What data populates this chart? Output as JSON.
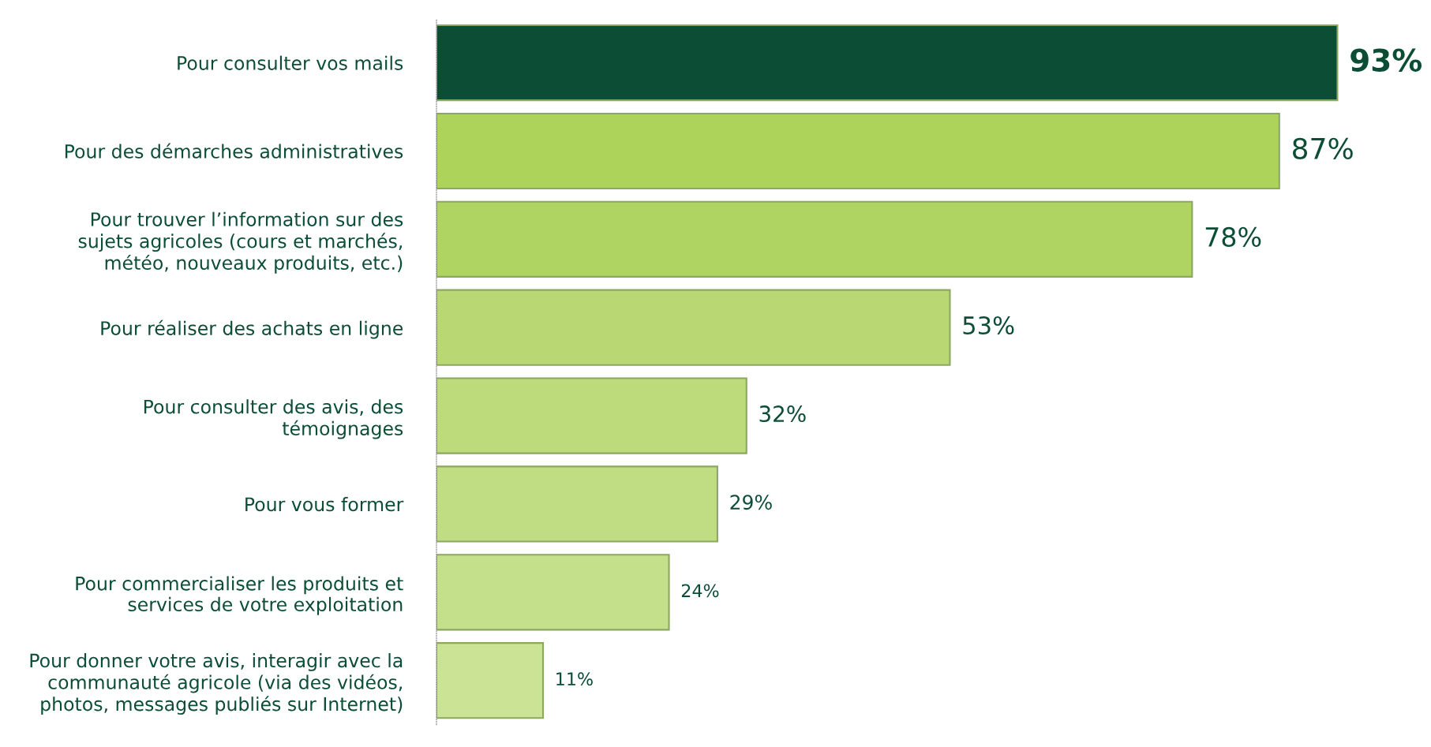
{
  "chart_data": {
    "type": "bar",
    "orientation": "horizontal",
    "categories": [
      "Pour consulter vos mails",
      "Pour des démarches administratives",
      "Pour trouver l’information sur des\nsujets agricoles (cours et marchés,\nmétéo, nouveaux produits, etc.)",
      "Pour réaliser des achats en ligne",
      "Pour consulter des avis, des\ntémoignages",
      "Pour vous former",
      "Pour commercialiser les produits et\nservices de votre exploitation",
      "Pour donner votre avis, interagir avec la\ncommunauté agricole (via des vidéos,\nphotos, messages publiés sur Internet)"
    ],
    "values": [
      93,
      87,
      78,
      53,
      32,
      29,
      24,
      11
    ],
    "colors": [
      "#0b4d35",
      "#aed35a",
      "#b0d462",
      "#b9d874",
      "#bddb7b",
      "#c1dd83",
      "#c5e08b",
      "#cae395"
    ],
    "value_labels": [
      "93%",
      "87%",
      "78%",
      "53%",
      "32%",
      "29%",
      "24%",
      "11%"
    ],
    "tick_labels": "y",
    "grid": false,
    "legend": false
  }
}
